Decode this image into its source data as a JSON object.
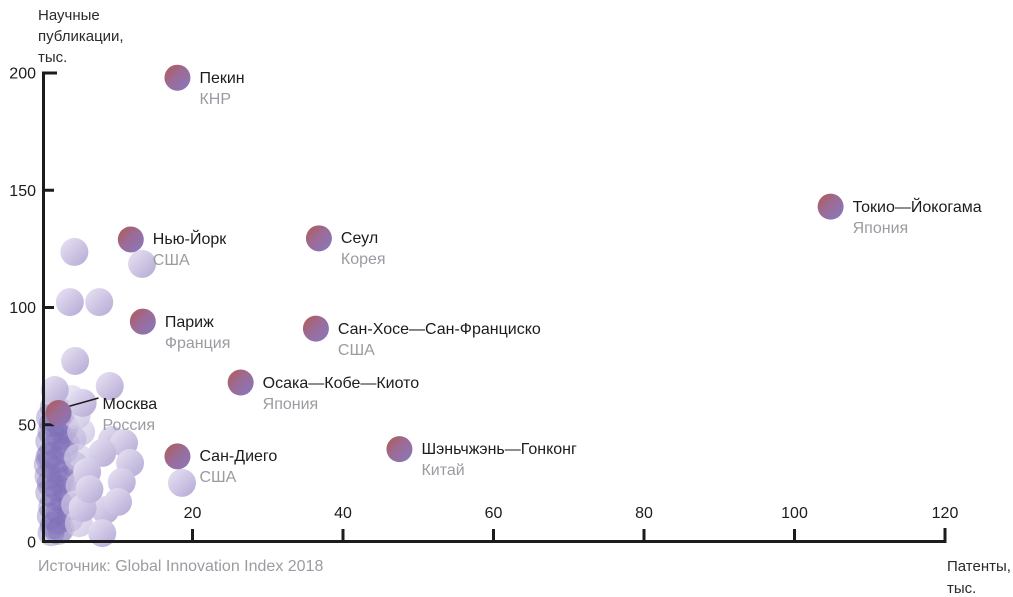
{
  "colors": {
    "axis": "#1c1c1c",
    "text_dark": "#1c1c1c",
    "text_gray": "#9b9ba1",
    "city_grad": [
      "#b25a50",
      "#9c6b96",
      "#8678c0"
    ],
    "light_grad": [
      "#e9e4f3",
      "#b4a8d5"
    ],
    "cluster_fill": "#7e6fb8"
  },
  "chart_data": {
    "type": "scatter",
    "title": "",
    "xlabel": "Патенты, тыс.",
    "ylabel": "Научные публикации, тыс.",
    "xlabel_display": "Патенты,\nтыс.",
    "ylabel_display": "Научные\nпубликации,\nтыс.",
    "source": "Источник: Global Innovation Index 2018",
    "xlim": [
      0,
      120
    ],
    "ylim": [
      0,
      200
    ],
    "x_ticks": [
      20,
      40,
      60,
      80,
      100,
      120
    ],
    "y_ticks": [
      0,
      50,
      100,
      150,
      200
    ],
    "legend_position": "none",
    "grid": false,
    "cities": [
      {
        "id": "beijing",
        "name": "Пекин",
        "country": "КНР",
        "x": 18.0,
        "y": 198
      },
      {
        "id": "tokyo-yokohama",
        "name": "Токио—Йокогама",
        "country": "Япония",
        "x": 104.8,
        "y": 143
      },
      {
        "id": "new-york",
        "name": "Нью-Йорк",
        "country": "США",
        "x": 11.8,
        "y": 129
      },
      {
        "id": "seoul",
        "name": "Сеул",
        "country": "Корея",
        "x": 36.8,
        "y": 129.5
      },
      {
        "id": "paris",
        "name": "Париж",
        "country": "Франция",
        "x": 13.4,
        "y": 94
      },
      {
        "id": "san-jose-san-francisco",
        "name": "Сан-Хосе—Сан-Франциско",
        "country": "США",
        "x": 36.4,
        "y": 91
      },
      {
        "id": "osaka-kobe-kyoto",
        "name": "Осака—Кобе—Киото",
        "country": "Япония",
        "x": 26.4,
        "y": 68
      },
      {
        "id": "moscow",
        "name": "Москва",
        "country": "Россия",
        "x": 2.2,
        "y": 55,
        "connector": true,
        "ldx": 44,
        "ldy": -19
      },
      {
        "id": "san-diego",
        "name": "Сан-Диего",
        "country": "США",
        "x": 18.0,
        "y": 36.5
      },
      {
        "id": "shenzhen-hong-kong",
        "name": "Шэньчжэнь—Гонконг",
        "country": "Китай",
        "x": 47.5,
        "y": 39.6
      }
    ],
    "light_bubbles": [
      [
        4.3,
        123.7
      ],
      [
        13.3,
        118.6
      ],
      [
        3.7,
        102.3
      ],
      [
        7.6,
        102.3
      ],
      [
        4.4,
        77.2
      ],
      [
        9.0,
        66.5
      ],
      [
        1.7,
        64.8
      ],
      [
        5.4,
        59.3
      ],
      [
        9.3,
        43.5
      ],
      [
        10.9,
        42.2
      ],
      [
        8.0,
        38.0
      ],
      [
        11.7,
        33.7
      ],
      [
        6.0,
        29.9
      ],
      [
        10.6,
        25.6
      ],
      [
        18.6,
        25.2
      ],
      [
        8.4,
        13.6
      ],
      [
        5.4,
        14.5
      ],
      [
        10.1,
        17.1
      ],
      [
        8.0,
        3.8
      ],
      [
        6.3,
        22.5
      ]
    ],
    "halo_bubbles": [
      [
        4.6,
        54
      ],
      [
        5.2,
        47
      ],
      [
        4.8,
        36
      ],
      [
        5.0,
        24
      ],
      [
        4.4,
        16
      ],
      [
        4.9,
        8
      ],
      [
        3.9,
        61
      ]
    ],
    "cluster_bubbles": [
      [
        1.5,
        57.5
      ],
      [
        2.6,
        55.5
      ],
      [
        1.0,
        53
      ],
      [
        2.1,
        51
      ],
      [
        3.1,
        49
      ],
      [
        1.2,
        47
      ],
      [
        2.3,
        45
      ],
      [
        0.9,
        43
      ],
      [
        1.9,
        41
      ],
      [
        3.0,
        39
      ],
      [
        1.1,
        37
      ],
      [
        2.1,
        35
      ],
      [
        0.7,
        33
      ],
      [
        1.7,
        31
      ],
      [
        2.7,
        29
      ],
      [
        3.5,
        27
      ],
      [
        1.1,
        25
      ],
      [
        2.1,
        23
      ],
      [
        0.9,
        21
      ],
      [
        1.9,
        19
      ],
      [
        2.9,
        17
      ],
      [
        1.3,
        15
      ],
      [
        2.3,
        13
      ],
      [
        1.1,
        11
      ],
      [
        2.1,
        9
      ],
      [
        1.5,
        7
      ],
      [
        2.5,
        5.5
      ],
      [
        1.2,
        4
      ],
      [
        2.2,
        4.5
      ],
      [
        3.3,
        21.5
      ],
      [
        4.1,
        44
      ],
      [
        3.7,
        10
      ],
      [
        4.3,
        33
      ],
      [
        3.9,
        15
      ],
      [
        0.8,
        28
      ],
      [
        1.4,
        50.5
      ],
      [
        3.2,
        42
      ],
      [
        2.8,
        47.5
      ],
      [
        0.9,
        36
      ],
      [
        2.4,
        26
      ]
    ]
  }
}
